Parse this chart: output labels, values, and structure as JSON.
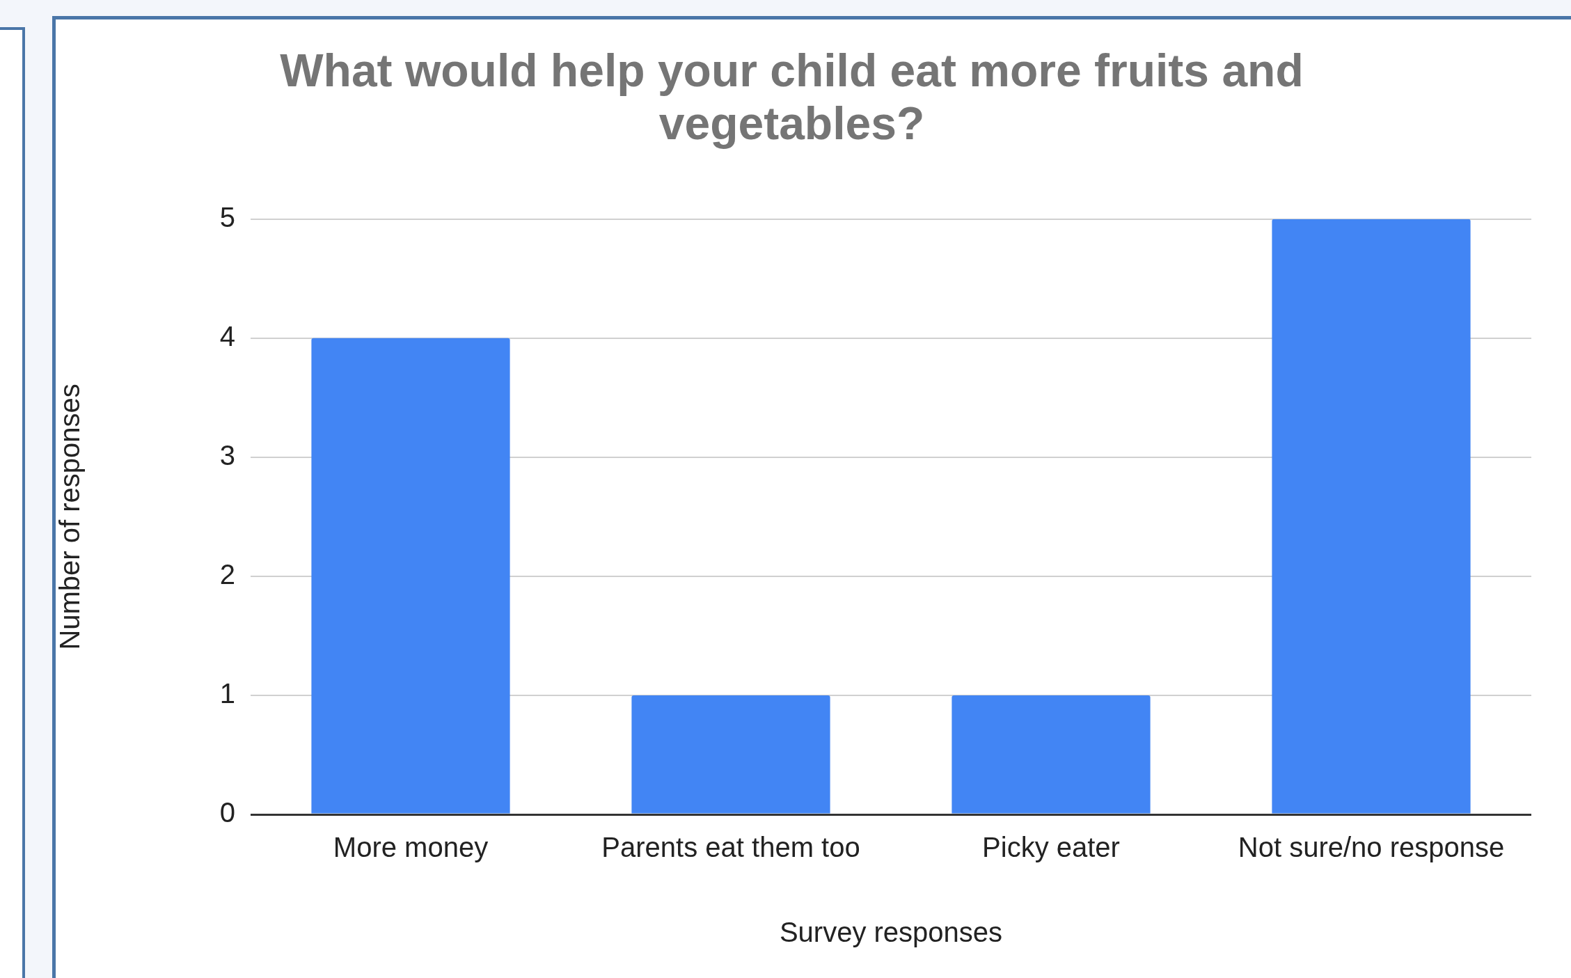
{
  "chart_data": {
    "type": "bar",
    "title": "What would help your child eat more fruits and vegetables?",
    "xlabel": "Survey responses",
    "ylabel": "Number of responses",
    "categories": [
      "More money",
      "Parents eat them too",
      "Picky eater",
      "Not sure/no response"
    ],
    "values": [
      4,
      1,
      1,
      5
    ],
    "color": "#4285f4",
    "ylim": [
      0,
      5
    ],
    "yticks": [
      0,
      1,
      2,
      3,
      4,
      5
    ],
    "grid": "y",
    "legend": false
  }
}
